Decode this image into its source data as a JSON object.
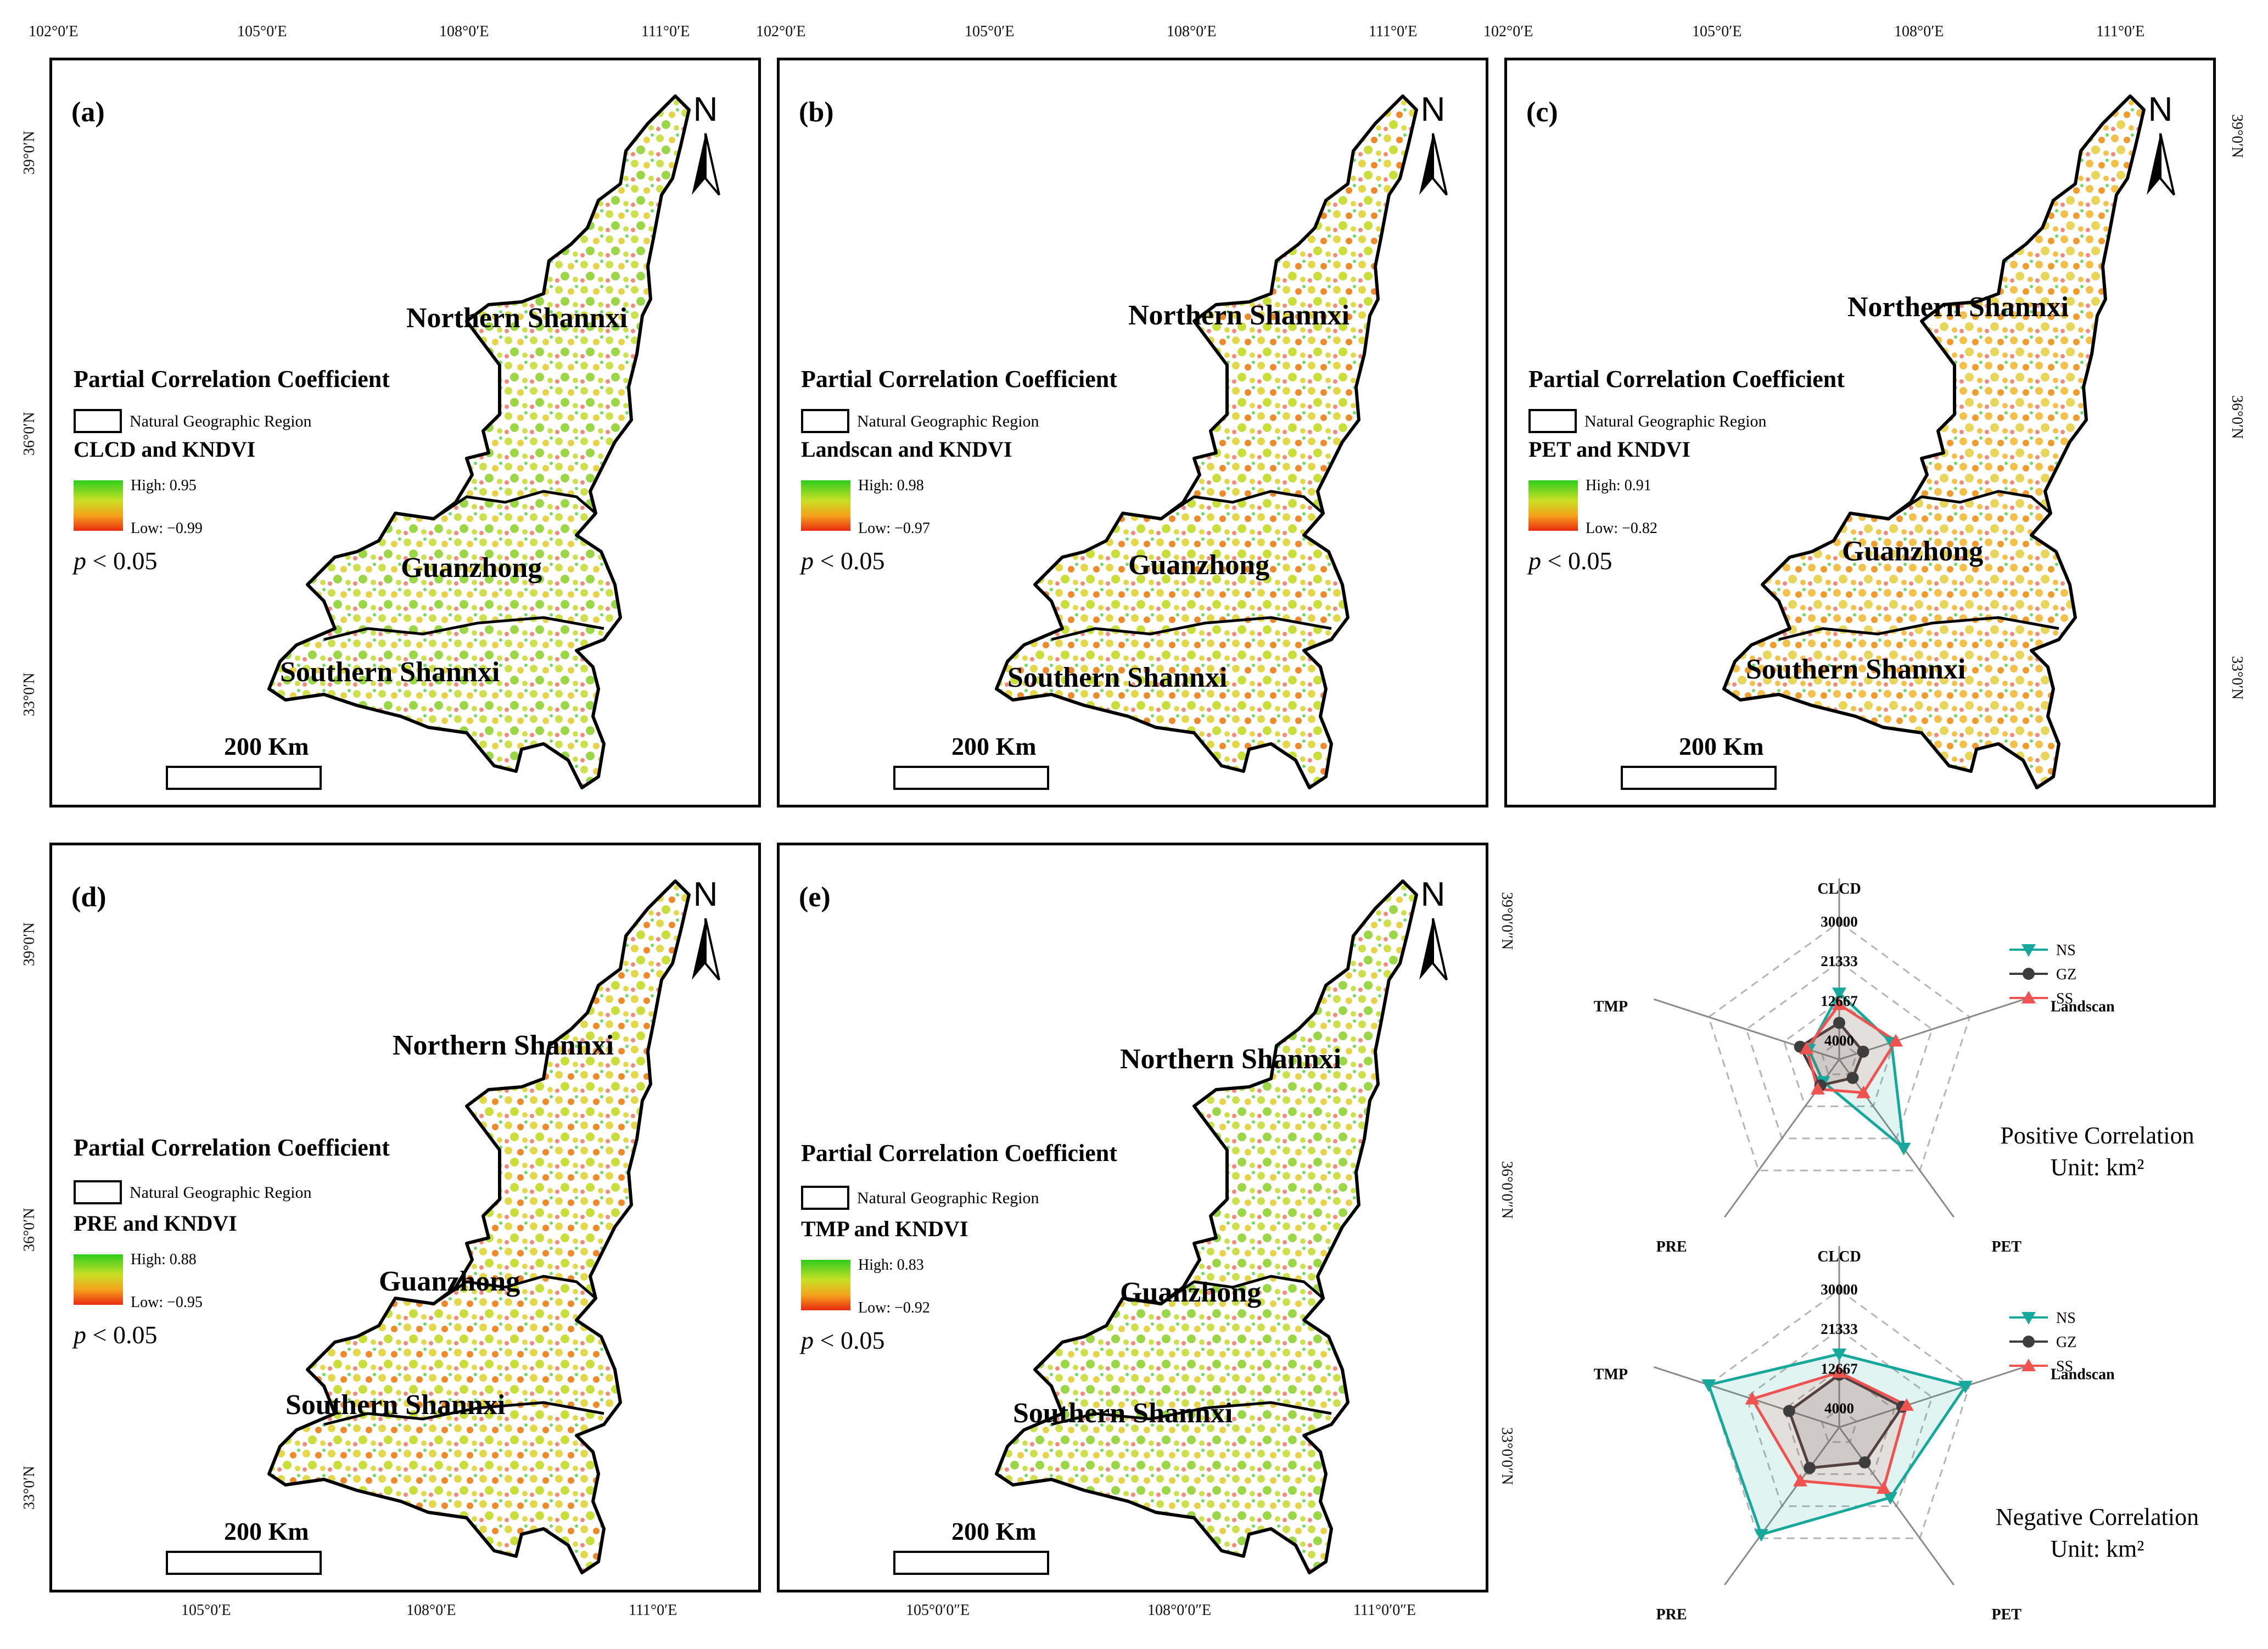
{
  "panels": [
    {
      "label": "(a)",
      "legend_title": "Partial Correlation Coefficient",
      "box_label": "Natural Geographic Region",
      "subtitle": "CLCD and KNDVI",
      "high": "High: 0.95",
      "low": "Low: −0.99",
      "p_var": "p",
      "p_rest": " < 0.05",
      "regions": {
        "north": "Northern Shannxi",
        "middle": "Guanzhong",
        "south": "Southern Shannxi"
      },
      "scale": "200 Km",
      "tone": "mixed"
    },
    {
      "label": "(b)",
      "legend_title": "Partial Correlation Coefficient",
      "box_label": "Natural Geographic Region",
      "subtitle": "Landscan and KNDVI",
      "high": "High: 0.98",
      "low": "Low: −0.97",
      "p_var": "p",
      "p_rest": " < 0.05",
      "regions": {
        "north": "Northern Shannxi",
        "middle": "Guanzhong",
        "south": "Southern Shannxi"
      },
      "scale": "200 Km",
      "tone": "mixed-red"
    },
    {
      "label": "(c)",
      "legend_title": "Partial Correlation Coefficient",
      "box_label": "Natural Geographic Region",
      "subtitle": "PET and KNDVI",
      "high": "High: 0.91",
      "low": "Low: −0.82",
      "p_var": "p",
      "p_rest": " < 0.05",
      "regions": {
        "north": "Northern Shannxi",
        "middle": "Guanzhong",
        "south": "Southern Shannxi"
      },
      "scale": "200 Km",
      "tone": "orange"
    },
    {
      "label": "(d)",
      "legend_title": "Partial Correlation Coefficient",
      "box_label": "Natural Geographic Region",
      "subtitle": "PRE and KNDVI",
      "high": "High: 0.88",
      "low": "Low: −0.95",
      "p_var": "p",
      "p_rest": " < 0.05",
      "regions": {
        "north": "Northern Shannxi",
        "middle": "Guanzhong",
        "south": "Southern Shannxi"
      },
      "scale": "200 Km",
      "tone": "mixed-red"
    },
    {
      "label": "(e)",
      "legend_title": "Partial Correlation Coefficient",
      "box_label": "Natural Geographic Region",
      "subtitle": "TMP and KNDVI",
      "high": "High: 0.83",
      "low": "Low: −0.92",
      "p_var": "p",
      "p_rest": " < 0.05",
      "regions": {
        "north": "Northern Shannxi",
        "middle": "Guanzhong",
        "south": "Southern Shannxi"
      },
      "scale": "200 Km",
      "tone": "mixed"
    }
  ],
  "north_arrow": "N",
  "coords": {
    "top_lon": [
      "102°0′E",
      "105°0′E",
      "108°0′E",
      "111°0′E"
    ],
    "lat": [
      "39°0′N",
      "36°0′N",
      "33°0′N"
    ],
    "bottom_lon_d": [
      "105°0′E",
      "108°0′E",
      "111°0′E"
    ],
    "bottom_lon_e": [
      "105°0′0″E",
      "108°0′0″E",
      "111°0′0″E"
    ],
    "lat_e": [
      "39°0′0″N",
      "36°0′0″N",
      "33°0′0″N"
    ]
  },
  "palette": {
    "high": "#2ecc1e",
    "mid": "#c8e024",
    "orange": "#f5a21b",
    "low": "#ea2a10"
  },
  "chart_data": [
    {
      "type": "radar",
      "axes": [
        "CLCD",
        "Landscan",
        "PET",
        "PRE",
        "TMP"
      ],
      "ticks": [
        "4000",
        "12667",
        "21333",
        "30000"
      ],
      "rlim": [
        0,
        30000
      ],
      "series": [
        {
          "name": "NS",
          "color": "#17a89c",
          "marker": "triangle-down",
          "values": [
            14500,
            12000,
            24000,
            6000,
            7000
          ]
        },
        {
          "name": "GZ",
          "color": "#3d3d3d",
          "marker": "circle",
          "values": [
            8000,
            5500,
            5000,
            7000,
            9000
          ]
        },
        {
          "name": "SS",
          "color": "#ef5350",
          "marker": "triangle-up",
          "values": [
            12000,
            13000,
            9000,
            8000,
            7500
          ]
        }
      ],
      "caption_line1": "Positive Correlation",
      "caption_line2": "Unit: km²"
    },
    {
      "type": "radar",
      "axes": [
        "CLCD",
        "Landscan",
        "PET",
        "PRE",
        "TMP"
      ],
      "ticks": [
        "4000",
        "12667",
        "21333",
        "30000"
      ],
      "rlim": [
        0,
        30000
      ],
      "series": [
        {
          "name": "NS",
          "color": "#17a89c",
          "marker": "triangle-down",
          "values": [
            16000,
            29000,
            19000,
            29000,
            30000
          ]
        },
        {
          "name": "GZ",
          "color": "#3d3d3d",
          "marker": "circle",
          "values": [
            11500,
            14500,
            9500,
            11000,
            11500
          ]
        },
        {
          "name": "SS",
          "color": "#ef5350",
          "marker": "triangle-up",
          "values": [
            12000,
            15500,
            16500,
            14500,
            20000
          ]
        }
      ],
      "caption_line1": "Negative Correlation",
      "caption_line2": "Unit: km²"
    }
  ]
}
